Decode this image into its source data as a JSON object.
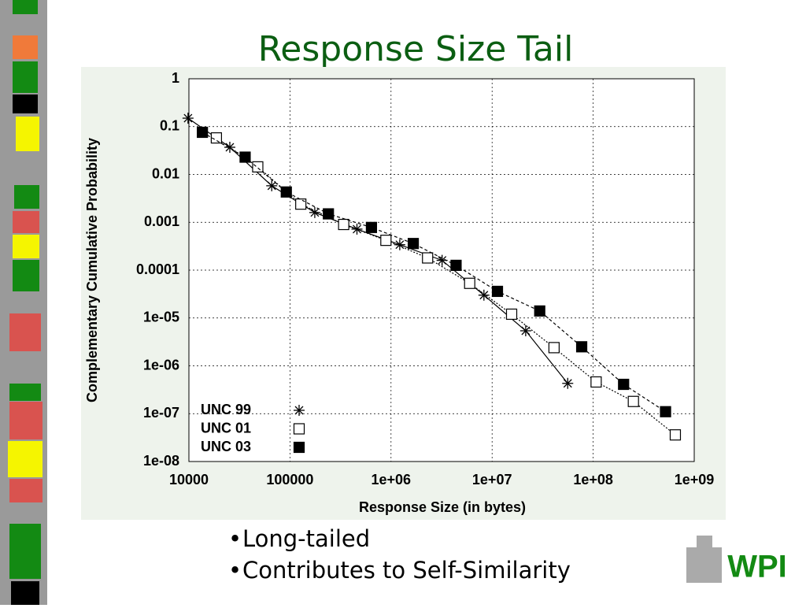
{
  "slide": {
    "title": "Response Size Tail",
    "bullets": [
      "Long-tailed",
      "Contributes to Self-Similarity"
    ],
    "logo": "WPI"
  },
  "chart_data": {
    "type": "line",
    "xlabel": "Response Size (in bytes)",
    "ylabel": "Complementary Cumulative Probability",
    "xscale": "log",
    "yscale": "log",
    "grid": true,
    "legend": "lower left",
    "xlim": [
      10000,
      1000000000
    ],
    "xticks": [
      10000,
      100000,
      {
        "value": 1000000,
        "label": "1e+06"
      },
      {
        "value": 10000000,
        "label": "1e+07"
      },
      {
        "value": 100000000,
        "label": "1e+08"
      },
      {
        "value": 1000000000,
        "label": "1e+09"
      }
    ],
    "ylim": [
      1e-08,
      1
    ],
    "yticks": [
      1,
      0.1,
      0.01,
      0.001,
      0.0001,
      {
        "value": 1e-05,
        "label": "1e-05"
      },
      {
        "value": 1e-06,
        "label": "1e-06"
      },
      {
        "value": 1e-07,
        "label": "1e-07"
      },
      {
        "value": 1e-08,
        "label": "1e-08"
      }
    ],
    "series": [
      {
        "name": "UNC 99",
        "marker": "asterisk",
        "dash": "none",
        "color": "#000000",
        "x": [
          9800,
          25400,
          66000,
          176000,
          460000,
          1220000,
          3200000,
          8300000,
          21500000,
          56000000
        ],
        "values": [
          0.15,
          0.037,
          0.0058,
          0.0016,
          0.00072,
          0.00034,
          0.00016,
          3e-05,
          5.4e-06,
          4.3e-07
        ]
      },
      {
        "name": "UNC 01",
        "marker": "open-square",
        "dash": "2,2",
        "color": "#000000",
        "x": [
          18700,
          48000,
          128000,
          340000,
          890000,
          2300000,
          6000000,
          15600000,
          41000000,
          107000000,
          250000000,
          650000000
        ],
        "values": [
          0.058,
          0.0144,
          0.0024,
          0.0009,
          0.00042,
          0.00018,
          5.3e-05,
          1.2e-05,
          2.4e-06,
          4.6e-07,
          1.8e-07,
          3.6e-08
        ]
      },
      {
        "name": "UNC 03",
        "marker": "filled-square",
        "dash": "4,3",
        "color": "#000000",
        "x": [
          13600,
          36000,
          92000,
          240000,
          640000,
          1660000,
          4400000,
          11300000,
          29600000,
          77000000,
          200000000,
          520000000
        ],
        "values": [
          0.076,
          0.023,
          0.0043,
          0.0015,
          0.00078,
          0.00036,
          0.000126,
          3.6e-05,
          1.4e-05,
          2.5e-06,
          4.1e-07,
          1.1e-07
        ]
      }
    ]
  }
}
